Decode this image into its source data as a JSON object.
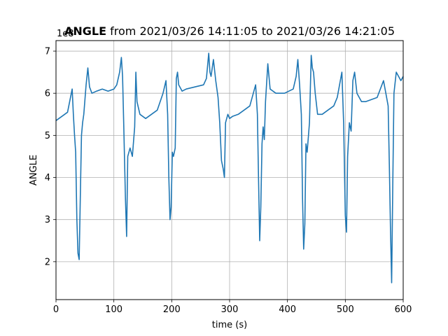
{
  "chart_data": {
    "type": "line",
    "title_bold": "ANGLE",
    "title_rest": " from 2021/03/26 14:11:05 to 2021/03/26 14:21:05",
    "xlabel": "time (s)",
    "ylabel": "ANGLE",
    "y_offset_label": "1e8",
    "xlim": [
      0,
      600
    ],
    "ylim": [
      1.1,
      7.25
    ],
    "x_ticks": [
      0,
      100,
      200,
      300,
      400,
      500,
      600
    ],
    "y_ticks": [
      2,
      3,
      4,
      5,
      6,
      7
    ],
    "grid": true,
    "series": [
      {
        "color": "#1f77b4",
        "x": [
          0,
          5,
          10,
          15,
          20,
          25,
          28,
          30,
          32,
          34,
          36,
          38,
          40,
          42,
          44,
          46,
          48,
          52,
          55,
          58,
          62,
          70,
          80,
          90,
          100,
          105,
          110,
          113,
          115,
          117,
          120,
          122,
          124,
          128,
          132,
          136,
          138,
          140,
          145,
          155,
          165,
          175,
          185,
          190,
          193,
          195,
          197,
          199,
          201,
          203,
          206,
          208,
          210,
          212,
          218,
          225,
          240,
          255,
          260,
          264,
          266,
          268,
          272,
          276,
          280,
          283,
          286,
          289,
          291,
          293,
          297,
          300,
          305,
          315,
          325,
          335,
          345,
          348,
          350,
          352,
          354,
          356,
          358,
          360,
          362,
          366,
          370,
          380,
          395,
          410,
          415,
          418,
          421,
          424,
          426,
          428,
          430,
          432,
          434,
          438,
          441,
          443,
          445,
          448,
          452,
          460,
          470,
          480,
          486,
          490,
          494,
          497,
          500,
          502,
          504,
          507,
          510,
          513,
          516,
          520,
          528,
          535,
          545,
          555,
          566,
          570,
          574,
          576,
          578,
          580,
          582,
          584,
          588,
          592,
          596,
          600
        ],
        "y": [
          5.35,
          5.4,
          5.45,
          5.5,
          5.55,
          5.9,
          6.1,
          5.5,
          5.0,
          4.6,
          3.0,
          2.2,
          2.05,
          3.5,
          5.0,
          5.3,
          5.5,
          6.2,
          6.6,
          6.15,
          6.0,
          6.05,
          6.1,
          6.05,
          6.1,
          6.2,
          6.5,
          6.85,
          6.4,
          5.3,
          3.5,
          2.6,
          4.5,
          4.7,
          4.5,
          5.2,
          6.5,
          5.8,
          5.5,
          5.4,
          5.5,
          5.6,
          6.0,
          6.3,
          5.5,
          4.0,
          3.0,
          3.3,
          4.6,
          4.5,
          4.7,
          6.35,
          6.5,
          6.2,
          6.05,
          6.1,
          6.15,
          6.2,
          6.35,
          6.95,
          6.5,
          6.4,
          6.8,
          6.3,
          5.9,
          5.3,
          4.4,
          4.2,
          4.0,
          5.3,
          5.5,
          5.4,
          5.45,
          5.5,
          5.6,
          5.7,
          6.2,
          5.5,
          4.0,
          2.5,
          3.3,
          4.8,
          5.2,
          4.9,
          5.8,
          6.7,
          6.1,
          6.0,
          6.0,
          6.1,
          6.4,
          6.8,
          6.2,
          5.5,
          3.5,
          2.3,
          2.9,
          4.8,
          4.6,
          5.3,
          6.9,
          6.6,
          6.5,
          6.0,
          5.5,
          5.5,
          5.6,
          5.7,
          5.9,
          6.2,
          6.5,
          5.3,
          3.1,
          2.7,
          4.5,
          5.3,
          5.1,
          6.3,
          6.5,
          6.0,
          5.8,
          5.8,
          5.85,
          5.9,
          6.3,
          6.0,
          5.7,
          4.3,
          2.8,
          1.5,
          3.8,
          6.0,
          6.5,
          6.4,
          6.3,
          6.4
        ]
      }
    ]
  }
}
